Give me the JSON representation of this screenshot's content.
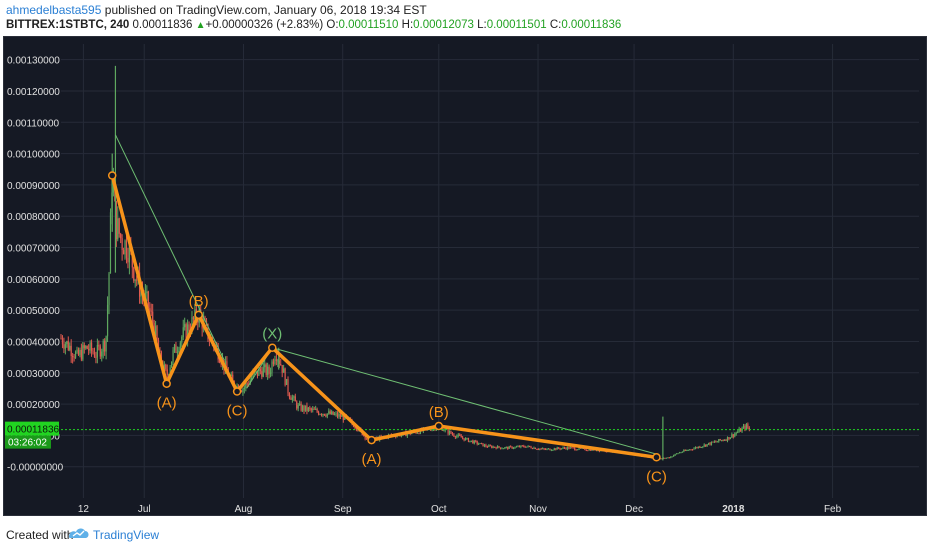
{
  "header": {
    "author": "ahmedelbasta595",
    "published_text": "published on TradingView.com, January 06, 2018 19:34 EST",
    "symbol": "BITTREX:1STBTC, 240",
    "last": "0.00011836",
    "change_arrow": "▲",
    "change": "+0.00000326 (+2.83%)",
    "open_label": "O:",
    "open": "0.00011510",
    "high_label": "H:",
    "high": "0.00012073",
    "low_label": "L:",
    "low": "0.00011501",
    "close_label": "C:",
    "close": "0.00011836"
  },
  "footer": {
    "created_with": "Created with",
    "brand": "TradingView"
  },
  "price_badge": {
    "price": "0.00011836",
    "countdown": "03:26:02"
  },
  "colors": {
    "background": "#151924",
    "wave": "#f7931a",
    "trendline": "#6fbf73",
    "up_candle": "#5fa85f",
    "down_candle": "#e05a4f",
    "price_line": "#21d421",
    "axis_text": "#e0e0e0"
  },
  "chart_data": {
    "type": "line",
    "title": "BITTREX:1STBTC, 240",
    "y_axis_side": "left",
    "ylim": [
      -0.0001,
      0.00135
    ],
    "y_ticks": [
      "0.00130000",
      "0.00120000",
      "0.00110000",
      "0.00100000",
      "0.00090000",
      "0.00080000",
      "0.00070000",
      "0.00060000",
      "0.00050000",
      "0.00040000",
      "0.00030000",
      "0.00020000",
      "0.00010000",
      "-0.00000000"
    ],
    "y_tick_values": [
      0.0013,
      0.0012,
      0.0011,
      0.001,
      0.0009,
      0.0008,
      0.0007,
      0.0006,
      0.0005,
      0.0004,
      0.0003,
      0.0002,
      0.0001,
      0.0
    ],
    "xlim": [
      "2017-06-05",
      "2018-02-28"
    ],
    "x_ticks": [
      {
        "label": "12",
        "date": "2017-06-12"
      },
      {
        "label": "Jul",
        "date": "2017-07-01"
      },
      {
        "label": "Aug",
        "date": "2017-08-01"
      },
      {
        "label": "Sep",
        "date": "2017-09-01"
      },
      {
        "label": "Oct",
        "date": "2017-10-01"
      },
      {
        "label": "Nov",
        "date": "2017-11-01"
      },
      {
        "label": "Dec",
        "date": "2017-12-01"
      },
      {
        "label": "2018",
        "date": "2018-01-01"
      },
      {
        "label": "Feb",
        "date": "2018-02-01"
      }
    ],
    "current_price": 0.00011836,
    "price_series": {
      "name": "",
      "points": [
        [
          "2017-06-05",
          0.00041
        ],
        [
          "2017-06-08",
          0.00038
        ],
        [
          "2017-06-10",
          0.00035
        ],
        [
          "2017-06-13",
          0.00038
        ],
        [
          "2017-06-16",
          0.00036
        ],
        [
          "2017-06-19",
          0.0004
        ],
        [
          "2017-06-20",
          0.00062
        ],
        [
          "2017-06-21",
          0.00095
        ],
        [
          "2017-06-22",
          0.00078
        ],
        [
          "2017-06-24",
          0.00072
        ],
        [
          "2017-06-26",
          0.0007
        ],
        [
          "2017-06-28",
          0.00062
        ],
        [
          "2017-06-30",
          0.00056
        ],
        [
          "2017-07-02",
          0.00052
        ],
        [
          "2017-07-04",
          0.00045
        ],
        [
          "2017-07-06",
          0.00034
        ],
        [
          "2017-07-08",
          0.00029
        ],
        [
          "2017-07-10",
          0.00036
        ],
        [
          "2017-07-13",
          0.00042
        ],
        [
          "2017-07-16",
          0.00046
        ],
        [
          "2017-07-18",
          0.00049
        ],
        [
          "2017-07-21",
          0.00042
        ],
        [
          "2017-07-24",
          0.00037
        ],
        [
          "2017-07-27",
          0.0003
        ],
        [
          "2017-07-29",
          0.00026
        ],
        [
          "2017-08-01",
          0.00025
        ],
        [
          "2017-08-04",
          0.00029
        ],
        [
          "2017-08-07",
          0.00031
        ],
        [
          "2017-08-09",
          0.0003
        ],
        [
          "2017-08-11",
          0.00037
        ],
        [
          "2017-08-13",
          0.00032
        ],
        [
          "2017-08-15",
          0.00024
        ],
        [
          "2017-08-18",
          0.00019
        ],
        [
          "2017-08-22",
          0.00018
        ],
        [
          "2017-08-27",
          0.00017
        ],
        [
          "2017-09-01",
          0.00016
        ],
        [
          "2017-09-05",
          0.00013
        ],
        [
          "2017-09-09",
          8.5e-05
        ],
        [
          "2017-09-12",
          9e-05
        ],
        [
          "2017-09-16",
          0.0001
        ],
        [
          "2017-09-21",
          0.000105
        ],
        [
          "2017-09-26",
          0.000115
        ],
        [
          "2017-10-01",
          0.00013
        ],
        [
          "2017-10-05",
          0.000105
        ],
        [
          "2017-10-10",
          8.5e-05
        ],
        [
          "2017-10-16",
          6.5e-05
        ],
        [
          "2017-10-22",
          6e-05
        ],
        [
          "2017-10-28",
          6.5e-05
        ],
        [
          "2017-11-03",
          5.5e-05
        ],
        [
          "2017-11-10",
          6e-05
        ],
        [
          "2017-11-17",
          5.5e-05
        ],
        [
          "2017-11-24",
          5e-05
        ],
        [
          "2017-12-01",
          4e-05
        ],
        [
          "2017-12-06",
          3e-05
        ],
        [
          "2017-12-09",
          2.5e-05
        ],
        [
          "2017-12-12",
          3e-05
        ],
        [
          "2017-12-15",
          4.5e-05
        ],
        [
          "2017-12-20",
          6e-05
        ],
        [
          "2017-12-25",
          7.5e-05
        ],
        [
          "2017-12-30",
          9e-05
        ],
        [
          "2018-01-03",
          0.000115
        ],
        [
          "2018-01-05",
          0.00013
        ],
        [
          "2018-01-06",
          0.000118
        ]
      ],
      "spikes": [
        {
          "date": "2017-06-22",
          "low": 0.00062,
          "high": 0.00128
        },
        {
          "date": "2017-06-21",
          "low": 0.00075,
          "high": 0.001
        },
        {
          "date": "2017-08-12",
          "low": 0.00031,
          "high": 0.00038
        },
        {
          "date": "2017-12-10",
          "low": 2e-05,
          "high": 0.00016
        }
      ]
    },
    "wave_series": {
      "name": "",
      "points": [
        {
          "date": "2017-06-21",
          "value": 0.00093,
          "label": ""
        },
        {
          "date": "2017-07-08",
          "value": 0.000265,
          "label": "(A)"
        },
        {
          "date": "2017-07-18",
          "value": 0.000485,
          "label": "(B)"
        },
        {
          "date": "2017-07-30",
          "value": 0.00024,
          "label": "(C)"
        },
        {
          "date": "2017-08-10",
          "value": 0.00038,
          "label": "(X)"
        },
        {
          "date": "2017-09-10",
          "value": 8.5e-05,
          "label": "(A)"
        },
        {
          "date": "2017-10-01",
          "value": 0.00013,
          "label": "(B)"
        },
        {
          "date": "2017-12-08",
          "value": 3e-05,
          "label": "(C)"
        }
      ]
    },
    "trendlines": [
      {
        "from": {
          "date": "2017-06-22",
          "value": 0.00106
        },
        "to": {
          "date": "2017-07-26",
          "value": 0.00034
        }
      },
      {
        "from": {
          "date": "2017-08-10",
          "value": 0.00038
        },
        "to": {
          "date": "2017-12-08",
          "value": 4e-05
        }
      },
      {
        "from": {
          "date": "2017-08-02",
          "value": 0.00025
        },
        "to": {
          "date": "2017-08-10",
          "value": 0.00038
        }
      }
    ],
    "grid": true
  }
}
